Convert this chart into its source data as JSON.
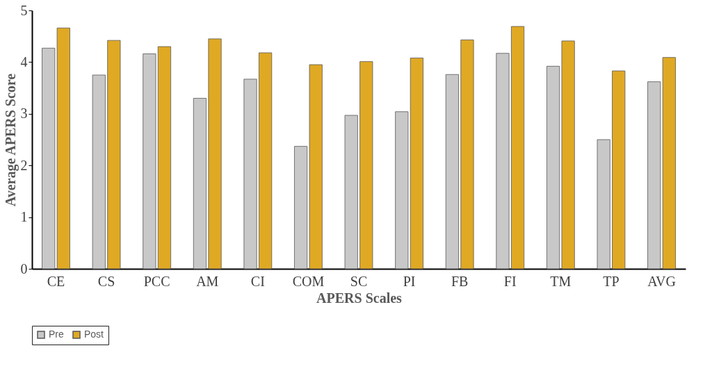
{
  "chart_data": {
    "type": "bar",
    "xlabel": "APERS Scales",
    "ylabel": "Average APERS Score",
    "categories": [
      "CE",
      "CS",
      "PCC",
      "AM",
      "CI",
      "COM",
      "SC",
      "PI",
      "FB",
      "FI",
      "TM",
      "TP",
      "AVG"
    ],
    "series": [
      {
        "name": "Pre",
        "color": "#c8c8c8",
        "values": [
          4.27,
          3.75,
          4.16,
          3.3,
          3.67,
          2.37,
          2.97,
          3.04,
          3.76,
          4.17,
          3.92,
          2.5,
          3.62
        ]
      },
      {
        "name": "Post",
        "color": "#e0a924",
        "values": [
          4.66,
          4.42,
          4.3,
          4.45,
          4.18,
          3.95,
          4.01,
          4.08,
          4.43,
          4.69,
          4.41,
          3.83,
          4.09
        ]
      }
    ],
    "ylim": [
      0,
      5
    ],
    "yticks": [
      0,
      1,
      2,
      3,
      4,
      5
    ],
    "grid": false,
    "legend": "bottom"
  }
}
